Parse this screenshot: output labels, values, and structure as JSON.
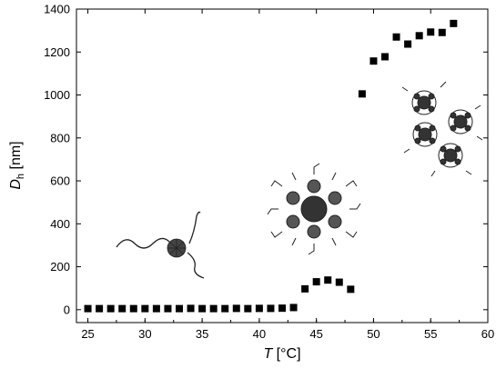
{
  "chart_data": {
    "type": "scatter",
    "title": "",
    "xlabel_main": "T",
    "xlabel_unit": " [°C]",
    "ylabel_main": "D",
    "ylabel_sub": "h",
    "ylabel_unit": " [nm]",
    "xlim": [
      24,
      60
    ],
    "ylim": [
      -60,
      1400
    ],
    "xticks": [
      25,
      30,
      35,
      40,
      45,
      50,
      55,
      60
    ],
    "yticks": [
      0,
      200,
      400,
      600,
      800,
      1000,
      1200,
      1400
    ],
    "grid": false,
    "legend": "none",
    "marker": "square",
    "marker_color": "#000000",
    "series": [
      {
        "x": [
          25,
          26,
          27,
          28,
          29,
          30,
          31,
          32,
          33,
          34,
          35,
          36,
          37,
          38,
          39,
          40,
          41,
          42,
          43,
          44,
          45,
          46,
          47,
          48,
          49,
          50,
          51,
          52,
          53,
          54,
          55,
          56,
          57
        ],
        "y": [
          5,
          5,
          5,
          5,
          5,
          5,
          5,
          5,
          5,
          6,
          5,
          5,
          5,
          6,
          5,
          6,
          6,
          7,
          10,
          97,
          130,
          138,
          128,
          95,
          1005,
          1158,
          1178,
          1270,
          1237,
          1276,
          1293,
          1291,
          1333
        ]
      }
    ]
  }
}
